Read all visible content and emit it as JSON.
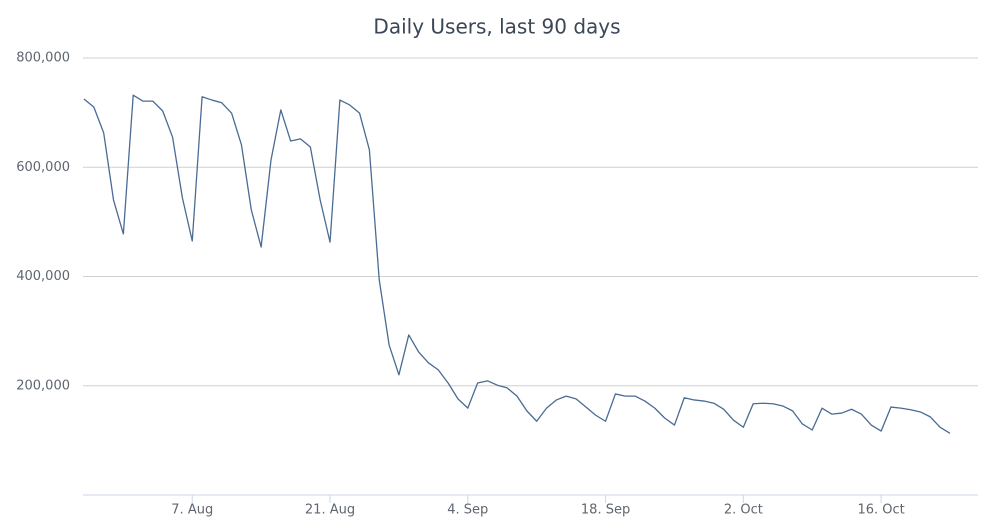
{
  "chart_data": {
    "type": "line",
    "title": "Daily Users, last 90 days",
    "categories": [
      null,
      null,
      null,
      null,
      null,
      null,
      null,
      null,
      null,
      null,
      null,
      "7. Aug",
      null,
      null,
      null,
      null,
      null,
      null,
      null,
      null,
      null,
      null,
      null,
      null,
      null,
      "21. Aug",
      null,
      null,
      null,
      null,
      null,
      null,
      null,
      null,
      null,
      null,
      null,
      null,
      null,
      "4. Sep",
      null,
      null,
      null,
      null,
      null,
      null,
      null,
      null,
      null,
      null,
      null,
      null,
      null,
      "18. Sep",
      null,
      null,
      null,
      null,
      null,
      null,
      null,
      null,
      null,
      null,
      null,
      null,
      null,
      "2. Oct",
      null,
      null,
      null,
      null,
      null,
      null,
      null,
      null,
      null,
      null,
      null,
      null,
      null,
      "16. Oct",
      null,
      null,
      null,
      null,
      null,
      null,
      null
    ],
    "series": [
      {
        "name": "Daily Users",
        "color": "#4a6b93",
        "values": [
          725000,
          710000,
          663000,
          540000,
          478000,
          732000,
          721000,
          721000,
          703000,
          655000,
          544000,
          465000,
          729000,
          723000,
          718000,
          699000,
          641000,
          522000,
          454000,
          613000,
          705000,
          648000,
          652000,
          637000,
          540000,
          463000,
          723000,
          714000,
          699000,
          632000,
          394000,
          275000,
          220000,
          293000,
          262000,
          242000,
          229000,
          205000,
          176000,
          159000,
          205000,
          209000,
          201000,
          196000,
          181000,
          154000,
          135000,
          159000,
          174000,
          181000,
          176000,
          161000,
          146000,
          135000,
          185000,
          181000,
          181000,
          172000,
          159000,
          141000,
          128000,
          178000,
          174000,
          172000,
          168000,
          157000,
          137000,
          124000,
          167000,
          168000,
          167000,
          163000,
          154000,
          130000,
          119000,
          159000,
          148000,
          150000,
          157000,
          148000,
          128000,
          117000,
          161000,
          159000,
          156000,
          152000,
          143000,
          124000,
          113000
        ]
      }
    ],
    "ylim": [
      0,
      800000
    ],
    "yticks": [
      {
        "value": 200000,
        "label": "200,000"
      },
      {
        "value": 400000,
        "label": "400,000"
      },
      {
        "value": 600000,
        "label": "600,000"
      },
      {
        "value": 800000,
        "label": "800,000"
      }
    ],
    "grid": true
  }
}
